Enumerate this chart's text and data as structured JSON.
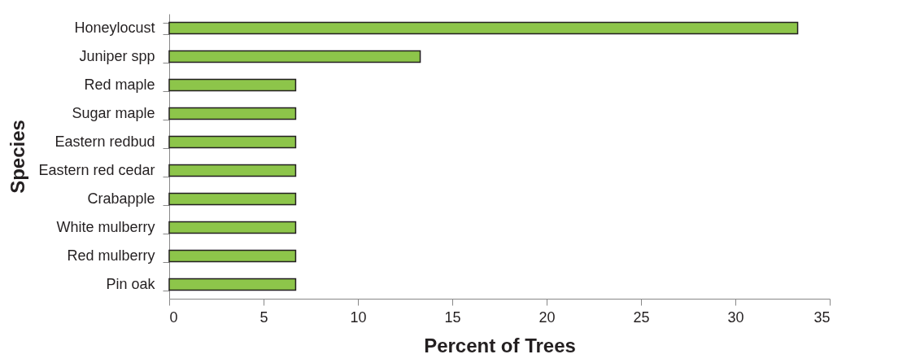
{
  "chart_data": {
    "type": "bar",
    "orientation": "horizontal",
    "xlabel": "Percent of Trees",
    "ylabel": "Species",
    "categories": [
      "Honeylocust",
      "Juniper spp",
      "Red maple",
      "Sugar maple",
      "Eastern redbud",
      "Eastern red cedar",
      "Crabapple",
      "White mulberry",
      "Red mulberry",
      "Pin oak"
    ],
    "values": [
      33.3,
      13.3,
      6.7,
      6.7,
      6.7,
      6.7,
      6.7,
      6.7,
      6.7,
      6.7
    ],
    "color": "#8dc54a",
    "xlim": [
      0,
      35
    ],
    "xticks": [
      0,
      5,
      10,
      15,
      20,
      25,
      30,
      35
    ],
    "grid": false
  }
}
